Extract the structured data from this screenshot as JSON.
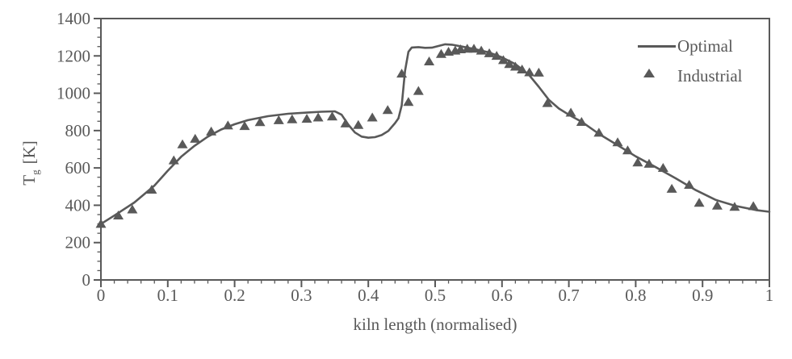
{
  "figure": {
    "background": "#ffffff",
    "axis_color": "#595959",
    "text_color": "#595959",
    "marker_color": "#595959",
    "line_color": "#595959"
  },
  "chart_data": {
    "type": "line",
    "title": "",
    "xlabel": "kiln length (normalised)",
    "ylabel": "Tg [K]",
    "ylabel_parts": {
      "base": "T",
      "sub": "g",
      "unit": "[K]"
    },
    "xlim": [
      0,
      1
    ],
    "ylim": [
      0,
      1400
    ],
    "grid": false,
    "legend_position": "top-right-inside",
    "x_major_ticks": [
      0,
      0.1,
      0.2,
      0.3,
      0.4,
      0.5,
      0.6,
      0.7,
      0.8,
      0.9,
      1
    ],
    "x_tick_labels": [
      "0",
      "0.1",
      "0.2",
      "0.3",
      "0.4",
      "0.5",
      "0.6",
      "0.7",
      "0.8",
      "0.9",
      "1"
    ],
    "x_minor_step": 0.02,
    "y_major_ticks": [
      0,
      200,
      400,
      600,
      800,
      1000,
      1200,
      1400
    ],
    "y_tick_labels": [
      "0",
      "200",
      "400",
      "600",
      "800",
      "1000",
      "1200",
      "1400"
    ],
    "y_minor_step": 50,
    "legend": [
      {
        "label": "Optimal",
        "symbol": "line"
      },
      {
        "label": "Industrial",
        "symbol": "triangle"
      }
    ],
    "series": [
      {
        "name": "Optimal",
        "type": "line",
        "color": "#595959",
        "points": [
          [
            0.0,
            300
          ],
          [
            0.02,
            345
          ],
          [
            0.05,
            415
          ],
          [
            0.08,
            505
          ],
          [
            0.1,
            585
          ],
          [
            0.12,
            660
          ],
          [
            0.14,
            718
          ],
          [
            0.16,
            768
          ],
          [
            0.18,
            806
          ],
          [
            0.2,
            834
          ],
          [
            0.22,
            856
          ],
          [
            0.25,
            877
          ],
          [
            0.28,
            890
          ],
          [
            0.31,
            897
          ],
          [
            0.33,
            901
          ],
          [
            0.35,
            903
          ],
          [
            0.36,
            885
          ],
          [
            0.37,
            832
          ],
          [
            0.38,
            790
          ],
          [
            0.39,
            768
          ],
          [
            0.4,
            762
          ],
          [
            0.41,
            765
          ],
          [
            0.42,
            776
          ],
          [
            0.43,
            798
          ],
          [
            0.44,
            840
          ],
          [
            0.445,
            865
          ],
          [
            0.45,
            935
          ],
          [
            0.455,
            1120
          ],
          [
            0.46,
            1222
          ],
          [
            0.465,
            1245
          ],
          [
            0.475,
            1247
          ],
          [
            0.485,
            1243
          ],
          [
            0.495,
            1244
          ],
          [
            0.505,
            1253
          ],
          [
            0.515,
            1262
          ],
          [
            0.525,
            1260
          ],
          [
            0.54,
            1250
          ],
          [
            0.56,
            1236
          ],
          [
            0.58,
            1219
          ],
          [
            0.6,
            1192
          ],
          [
            0.62,
            1156
          ],
          [
            0.64,
            1100
          ],
          [
            0.655,
            1035
          ],
          [
            0.67,
            965
          ],
          [
            0.685,
            918
          ],
          [
            0.7,
            885
          ],
          [
            0.72,
            845
          ],
          [
            0.745,
            782
          ],
          [
            0.77,
            728
          ],
          [
            0.8,
            662
          ],
          [
            0.83,
            604
          ],
          [
            0.86,
            544
          ],
          [
            0.89,
            481
          ],
          [
            0.92,
            428
          ],
          [
            0.95,
            396
          ],
          [
            0.98,
            374
          ],
          [
            1.0,
            365
          ]
        ]
      },
      {
        "name": "Industrial",
        "type": "scatter",
        "marker": "triangle",
        "color": "#595959",
        "points": [
          [
            0.0,
            300
          ],
          [
            0.026,
            345
          ],
          [
            0.047,
            377
          ],
          [
            0.076,
            483
          ],
          [
            0.109,
            640
          ],
          [
            0.122,
            726
          ],
          [
            0.141,
            756
          ],
          [
            0.165,
            795
          ],
          [
            0.19,
            827
          ],
          [
            0.215,
            824
          ],
          [
            0.238,
            845
          ],
          [
            0.266,
            855
          ],
          [
            0.286,
            860
          ],
          [
            0.308,
            863
          ],
          [
            0.325,
            870
          ],
          [
            0.346,
            875
          ],
          [
            0.366,
            838
          ],
          [
            0.385,
            830
          ],
          [
            0.406,
            870
          ],
          [
            0.429,
            910
          ],
          [
            0.45,
            1105
          ],
          [
            0.46,
            953
          ],
          [
            0.475,
            1012
          ],
          [
            0.491,
            1170
          ],
          [
            0.509,
            1210
          ],
          [
            0.52,
            1222
          ],
          [
            0.53,
            1228
          ],
          [
            0.538,
            1235
          ],
          [
            0.548,
            1238
          ],
          [
            0.558,
            1238
          ],
          [
            0.569,
            1228
          ],
          [
            0.581,
            1214
          ],
          [
            0.592,
            1200
          ],
          [
            0.602,
            1177
          ],
          [
            0.611,
            1156
          ],
          [
            0.62,
            1142
          ],
          [
            0.63,
            1127
          ],
          [
            0.641,
            1112
          ],
          [
            0.655,
            1110
          ],
          [
            0.668,
            947
          ],
          [
            0.703,
            896
          ],
          [
            0.719,
            846
          ],
          [
            0.745,
            788
          ],
          [
            0.773,
            737
          ],
          [
            0.788,
            694
          ],
          [
            0.803,
            629
          ],
          [
            0.82,
            622
          ],
          [
            0.841,
            600
          ],
          [
            0.854,
            488
          ],
          [
            0.88,
            509
          ],
          [
            0.895,
            413
          ],
          [
            0.922,
            398
          ],
          [
            0.948,
            391
          ],
          [
            0.976,
            395
          ]
        ]
      }
    ]
  }
}
